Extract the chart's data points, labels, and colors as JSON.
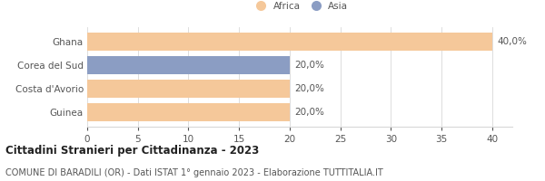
{
  "categories": [
    "Ghana",
    "Corea del Sud",
    "Costa d'Avorio",
    "Guinea"
  ],
  "values": [
    40,
    20,
    20,
    20
  ],
  "colors": [
    "#f5c89a",
    "#8b9dc3",
    "#f5c89a",
    "#f5c89a"
  ],
  "labels": [
    "40,0%",
    "20,0%",
    "20,0%",
    "20,0%"
  ],
  "xlim": [
    0,
    42
  ],
  "xticks": [
    0,
    5,
    10,
    15,
    20,
    25,
    30,
    35,
    40
  ],
  "legend_items": [
    {
      "label": "Africa",
      "color": "#f5c89a"
    },
    {
      "label": "Asia",
      "color": "#8b9dc3"
    }
  ],
  "title": "Cittadini Stranieri per Cittadinanza - 2023",
  "subtitle": "COMUNE DI BARADILI (OR) - Dati ISTAT 1° gennaio 2023 - Elaborazione TUTTITALIA.IT",
  "bar_height": 0.75,
  "background_color": "#ffffff",
  "grid_color": "#d8d8d8",
  "text_color": "#555555",
  "label_fontsize": 7.5,
  "tick_fontsize": 7.5,
  "category_fontsize": 7.5,
  "title_fontsize": 8.5,
  "subtitle_fontsize": 7
}
